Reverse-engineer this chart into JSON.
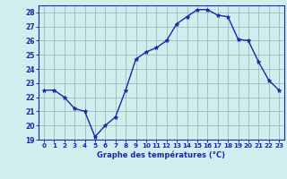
{
  "hours": [
    0,
    1,
    2,
    3,
    4,
    5,
    6,
    7,
    8,
    9,
    10,
    11,
    12,
    13,
    14,
    15,
    16,
    17,
    18,
    19,
    20,
    21,
    22,
    23
  ],
  "temps": [
    22.5,
    22.5,
    22.0,
    21.2,
    21.0,
    19.2,
    20.0,
    20.6,
    22.5,
    24.7,
    25.2,
    25.5,
    26.0,
    27.2,
    27.7,
    28.2,
    28.2,
    27.8,
    27.7,
    26.1,
    26.0,
    24.5,
    23.2,
    22.5
  ],
  "line_color": "#2222aa",
  "marker": "*",
  "marker_size": 3.5,
  "bg_color": "#d0eeee",
  "grid_color": "#99bbbb",
  "xlabel": "Graphe des températures (°C)",
  "xlabel_color": "#2222aa",
  "tick_color": "#2222aa",
  "ylim": [
    19,
    28.5
  ],
  "yticks": [
    19,
    20,
    21,
    22,
    23,
    24,
    25,
    26,
    27,
    28
  ],
  "xlim": [
    -0.5,
    23.5
  ],
  "xticks": [
    0,
    1,
    2,
    3,
    4,
    5,
    6,
    7,
    8,
    9,
    10,
    11,
    12,
    13,
    14,
    15,
    16,
    17,
    18,
    19,
    20,
    21,
    22,
    23
  ]
}
